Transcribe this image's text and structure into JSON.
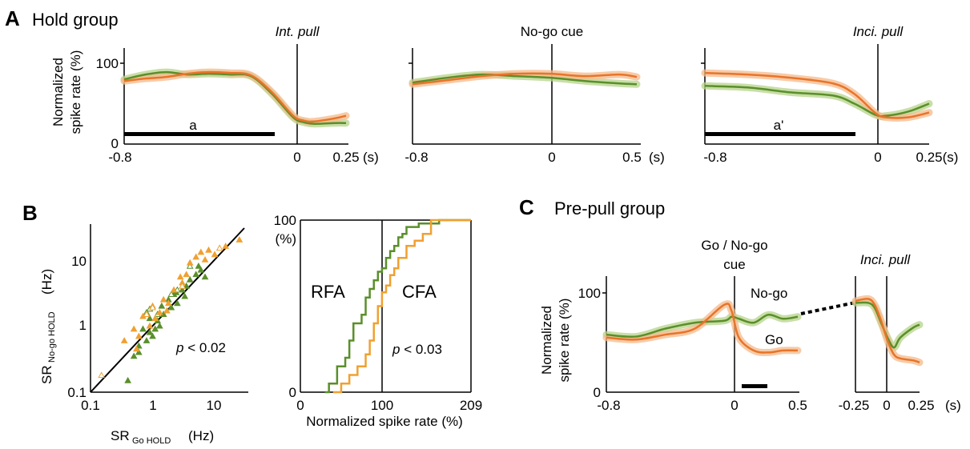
{
  "colors": {
    "green": "#5a8f2a",
    "orange": "#e8742a",
    "green_band": "#b5d38a",
    "orange_band": "#f4b98a",
    "cfa_orange": "#f0a030"
  },
  "panel_a": {
    "letter": "A",
    "title": "Hold group",
    "ylabel_line1": "Normalized",
    "ylabel_line2": "spike rate (%)",
    "yticks": [
      "100",
      "0"
    ],
    "subplots": [
      {
        "event": "Int. pull",
        "event_italic": true,
        "xticks": [
          "-0.8",
          "0",
          "0.25"
        ],
        "unit": "(s)",
        "bar_label": "a"
      },
      {
        "event": "No-go cue",
        "event_italic": false,
        "xticks": [
          "-0.8",
          "0",
          "0.5"
        ],
        "unit": "(s)",
        "bar_label": ""
      },
      {
        "event": "Inci. pull",
        "event_italic": true,
        "xticks": [
          "-0.8",
          "0",
          "0.25(s)"
        ],
        "unit": "",
        "bar_label": "a'"
      }
    ]
  },
  "panel_b": {
    "letter": "B",
    "scatter": {
      "xlabel_main": "SR",
      "xlabel_sub": "Go HOLD",
      "xlabel_unit": "(Hz)",
      "ylabel_main": "SR",
      "ylabel_sub": "No-go HOLD",
      "ylabel_unit": "(Hz)",
      "ticks": [
        "0.1",
        "1",
        "10"
      ],
      "p_label": "p",
      "p_text": " < 0.02"
    },
    "cdf": {
      "yticks": [
        "100",
        "0"
      ],
      "yunit": "(%)",
      "xticks": [
        "0",
        "100",
        "209"
      ],
      "xlabel": "Normalized  spike rate  (%)",
      "rfa_label": "RFA",
      "cfa_label": "CFA",
      "p_label": "p",
      "p_text": " < 0.03"
    }
  },
  "panel_c": {
    "letter": "C",
    "title": "Pre-pull group",
    "ylabel_line1": "Normalized",
    "ylabel_line2": "spike rate (%)",
    "yticks": [
      "100",
      "0"
    ],
    "event_line1": "Go / No-go",
    "event_line2": "cue",
    "nogo_label": "No-go",
    "go_label": "Go",
    "xticks_left": [
      "-0.8",
      "0",
      "0.5"
    ],
    "event_right": "Inci. pull",
    "xticks_right": [
      "-0.25",
      "0",
      "0.25"
    ],
    "unit": "(s)"
  },
  "chart_data": [
    {
      "type": "line",
      "title": "Int. pull",
      "xlim": [
        -0.8,
        0.25
      ],
      "ylim": [
        0,
        100
      ],
      "series": [
        {
          "color": "#5a8f2a",
          "x": [
            -0.8,
            -0.7,
            -0.6,
            -0.5,
            -0.4,
            -0.3,
            -0.2,
            -0.1,
            0,
            0.05,
            0.1,
            0.2,
            0.25
          ],
          "y": [
            80,
            86,
            89,
            86,
            87,
            86,
            84,
            62,
            33,
            27,
            25,
            26,
            26
          ]
        },
        {
          "color": "#e8742a",
          "x": [
            -0.8,
            -0.7,
            -0.6,
            -0.5,
            -0.4,
            -0.3,
            -0.2,
            -0.1,
            0,
            0.05,
            0.1,
            0.2,
            0.25
          ],
          "y": [
            78,
            81,
            83,
            87,
            89,
            88,
            85,
            64,
            35,
            29,
            28,
            32,
            35
          ]
        }
      ]
    },
    {
      "type": "line",
      "title": "No-go cue",
      "xlim": [
        -0.8,
        0.5
      ],
      "ylim": [
        0,
        100
      ],
      "series": [
        {
          "color": "#5a8f2a",
          "x": [
            -0.8,
            -0.6,
            -0.4,
            -0.2,
            0,
            0.2,
            0.4,
            0.5
          ],
          "y": [
            76,
            82,
            86,
            84,
            82,
            78,
            75,
            74
          ]
        },
        {
          "color": "#e8742a",
          "x": [
            -0.8,
            -0.6,
            -0.4,
            -0.2,
            0,
            0.2,
            0.4,
            0.5
          ],
          "y": [
            74,
            79,
            84,
            87,
            87,
            84,
            86,
            83
          ]
        }
      ]
    },
    {
      "type": "line",
      "title": "Inci. pull",
      "xlim": [
        -0.8,
        0.25
      ],
      "ylim": [
        0,
        100
      ],
      "series": [
        {
          "color": "#5a8f2a",
          "x": [
            -0.8,
            -0.6,
            -0.4,
            -0.2,
            -0.1,
            0,
            0.05,
            0.15,
            0.25
          ],
          "y": [
            72,
            70,
            64,
            60,
            50,
            36,
            35,
            40,
            50
          ]
        },
        {
          "color": "#e8742a",
          "x": [
            -0.8,
            -0.6,
            -0.4,
            -0.2,
            -0.1,
            0,
            0.05,
            0.15,
            0.25
          ],
          "y": [
            88,
            86,
            82,
            75,
            62,
            38,
            33,
            33,
            39
          ]
        }
      ]
    },
    {
      "type": "scatter",
      "xscale": "log",
      "yscale": "log",
      "xlim": [
        0.1,
        30
      ],
      "ylim": [
        0.1,
        30
      ],
      "series": [
        {
          "color": "#5a8f2a",
          "marker": "filled-triangle",
          "x": [
            0.4,
            0.5,
            0.6,
            0.7,
            0.8,
            0.9,
            1.0,
            1.2,
            1.3,
            1.5,
            1.8,
            2.0,
            2.2,
            2.5,
            3.0,
            3.5,
            4.0,
            5.0,
            6.0,
            7.0,
            0.6,
            0.9,
            1.1,
            1.4,
            2.4,
            3.3,
            5.5
          ],
          "y": [
            0.15,
            0.35,
            0.5,
            0.9,
            0.6,
            0.8,
            0.7,
            1.2,
            1.0,
            1.5,
            2.5,
            1.9,
            3.0,
            2.2,
            3.5,
            4.0,
            5.0,
            6.0,
            7.0,
            5.5,
            0.4,
            1.3,
            0.9,
            2.0,
            3.2,
            2.8,
            8.0
          ]
        },
        {
          "color": "#5a8f2a",
          "marker": "open-triangle",
          "x": [
            0.8,
            0.9,
            1.2,
            2.0,
            2.5,
            4.0
          ],
          "y": [
            1.6,
            1.8,
            1.5,
            3.0,
            3.5,
            8.0
          ]
        },
        {
          "color": "#f0a030",
          "marker": "filled-triangle",
          "x": [
            0.35,
            0.5,
            0.6,
            0.7,
            0.9,
            1.0,
            1.3,
            1.5,
            1.8,
            2.2,
            3.0,
            3.5,
            4.0,
            5.0,
            6.0,
            8.0,
            10,
            15,
            25,
            0.55,
            1.1,
            1.7,
            2.8,
            7.0
          ],
          "y": [
            0.6,
            0.9,
            0.7,
            1.4,
            1.0,
            2.0,
            1.6,
            2.5,
            2.2,
            3.5,
            4.5,
            6.0,
            9.0,
            11,
            13,
            14,
            12,
            16,
            20,
            0.45,
            1.3,
            1.7,
            5.5,
            10
          ]
        },
        {
          "color": "#f0a030",
          "marker": "open-triangle",
          "x": [
            0.15,
            0.8,
            1.0,
            3.0,
            12
          ],
          "y": [
            0.18,
            1.5,
            1.9,
            4.0,
            15
          ]
        }
      ]
    },
    {
      "type": "line",
      "xlim": [
        0,
        209
      ],
      "ylim": [
        0,
        100
      ],
      "series": [
        {
          "name": "RFA",
          "color": "#5a8f2a",
          "step": true,
          "x": [
            30,
            35,
            45,
            55,
            60,
            65,
            75,
            80,
            85,
            90,
            95,
            100,
            105,
            110,
            115,
            120,
            125,
            130,
            145,
            170,
            209
          ],
          "y": [
            0,
            5,
            15,
            20,
            30,
            40,
            45,
            55,
            60,
            65,
            70,
            72,
            78,
            82,
            85,
            90,
            92,
            96,
            98,
            100,
            100
          ]
        },
        {
          "name": "CFA",
          "color": "#f0a030",
          "step": true,
          "x": [
            40,
            50,
            60,
            70,
            80,
            85,
            90,
            95,
            100,
            105,
            110,
            115,
            120,
            130,
            140,
            150,
            160,
            209
          ],
          "y": [
            0,
            5,
            10,
            15,
            22,
            30,
            40,
            50,
            58,
            62,
            68,
            72,
            78,
            85,
            88,
            92,
            100,
            100
          ]
        }
      ]
    },
    {
      "type": "line",
      "title": "Go / No-go cue",
      "xlim": [
        -0.8,
        0.5
      ],
      "ylim": [
        0,
        100
      ],
      "series": [
        {
          "name": "No-go",
          "color": "#5a8f2a",
          "x": [
            -0.8,
            -0.6,
            -0.4,
            -0.2,
            0,
            0.05,
            0.1,
            0.2,
            0.3,
            0.4,
            0.5
          ],
          "y": [
            58,
            56,
            64,
            70,
            72,
            76,
            74,
            70,
            78,
            74,
            76
          ]
        },
        {
          "name": "Go",
          "color": "#e8742a",
          "x": [
            -0.8,
            -0.6,
            -0.4,
            -0.2,
            0,
            0.05,
            0.1,
            0.2,
            0.3,
            0.4,
            0.5
          ],
          "y": [
            55,
            53,
            58,
            64,
            88,
            82,
            55,
            42,
            40,
            42,
            42
          ]
        }
      ]
    },
    {
      "type": "line",
      "title": "Inci. pull",
      "xlim": [
        -0.25,
        0.25
      ],
      "ylim": [
        0,
        100
      ],
      "series": [
        {
          "color": "#5a8f2a",
          "x": [
            -0.25,
            -0.15,
            -0.1,
            -0.05,
            0,
            0.05,
            0.1,
            0.2,
            0.25
          ],
          "y": [
            90,
            90,
            85,
            70,
            55,
            45,
            55,
            65,
            68
          ]
        },
        {
          "color": "#e8742a",
          "x": [
            -0.25,
            -0.15,
            -0.1,
            -0.05,
            0,
            0.05,
            0.1,
            0.2,
            0.25
          ],
          "y": [
            92,
            94,
            88,
            72,
            52,
            38,
            34,
            32,
            30
          ]
        }
      ]
    }
  ]
}
